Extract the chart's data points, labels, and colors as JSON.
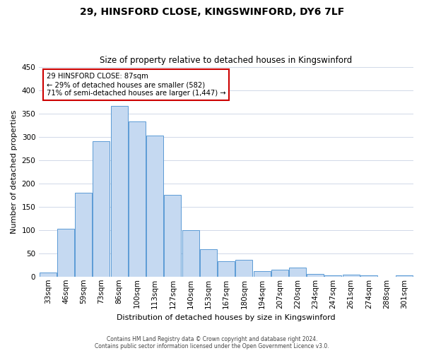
{
  "title": "29, HINSFORD CLOSE, KINGSWINFORD, DY6 7LF",
  "subtitle": "Size of property relative to detached houses in Kingswinford",
  "xlabel": "Distribution of detached houses by size in Kingswinford",
  "ylabel": "Number of detached properties",
  "categories": [
    "33sqm",
    "46sqm",
    "59sqm",
    "73sqm",
    "86sqm",
    "100sqm",
    "113sqm",
    "127sqm",
    "140sqm",
    "153sqm",
    "167sqm",
    "180sqm",
    "194sqm",
    "207sqm",
    "220sqm",
    "234sqm",
    "247sqm",
    "261sqm",
    "274sqm",
    "288sqm",
    "301sqm"
  ],
  "values": [
    8,
    103,
    180,
    290,
    366,
    333,
    303,
    176,
    100,
    58,
    33,
    36,
    11,
    15,
    19,
    5,
    3,
    4,
    2,
    0,
    2
  ],
  "bar_color": "#c5d9f1",
  "bar_edge_color": "#5b9bd5",
  "ylim": [
    0,
    450
  ],
  "yticks": [
    0,
    50,
    100,
    150,
    200,
    250,
    300,
    350,
    400,
    450
  ],
  "annotation_box_text": [
    "29 HINSFORD CLOSE: 87sqm",
    "← 29% of detached houses are smaller (582)",
    "71% of semi-detached houses are larger (1,447) →"
  ],
  "annotation_box_color": "#ffffff",
  "annotation_box_edge_color": "#cc0000",
  "vline_position": 4.5,
  "footer_line1": "Contains HM Land Registry data © Crown copyright and database right 2024.",
  "footer_line2": "Contains public sector information licensed under the Open Government Licence v3.0.",
  "background_color": "#ffffff",
  "grid_color": "#d0d8e8",
  "title_fontsize": 10,
  "subtitle_fontsize": 8.5,
  "ylabel_fontsize": 8,
  "xlabel_fontsize": 8,
  "tick_fontsize": 7.5,
  "footer_fontsize": 5.5
}
